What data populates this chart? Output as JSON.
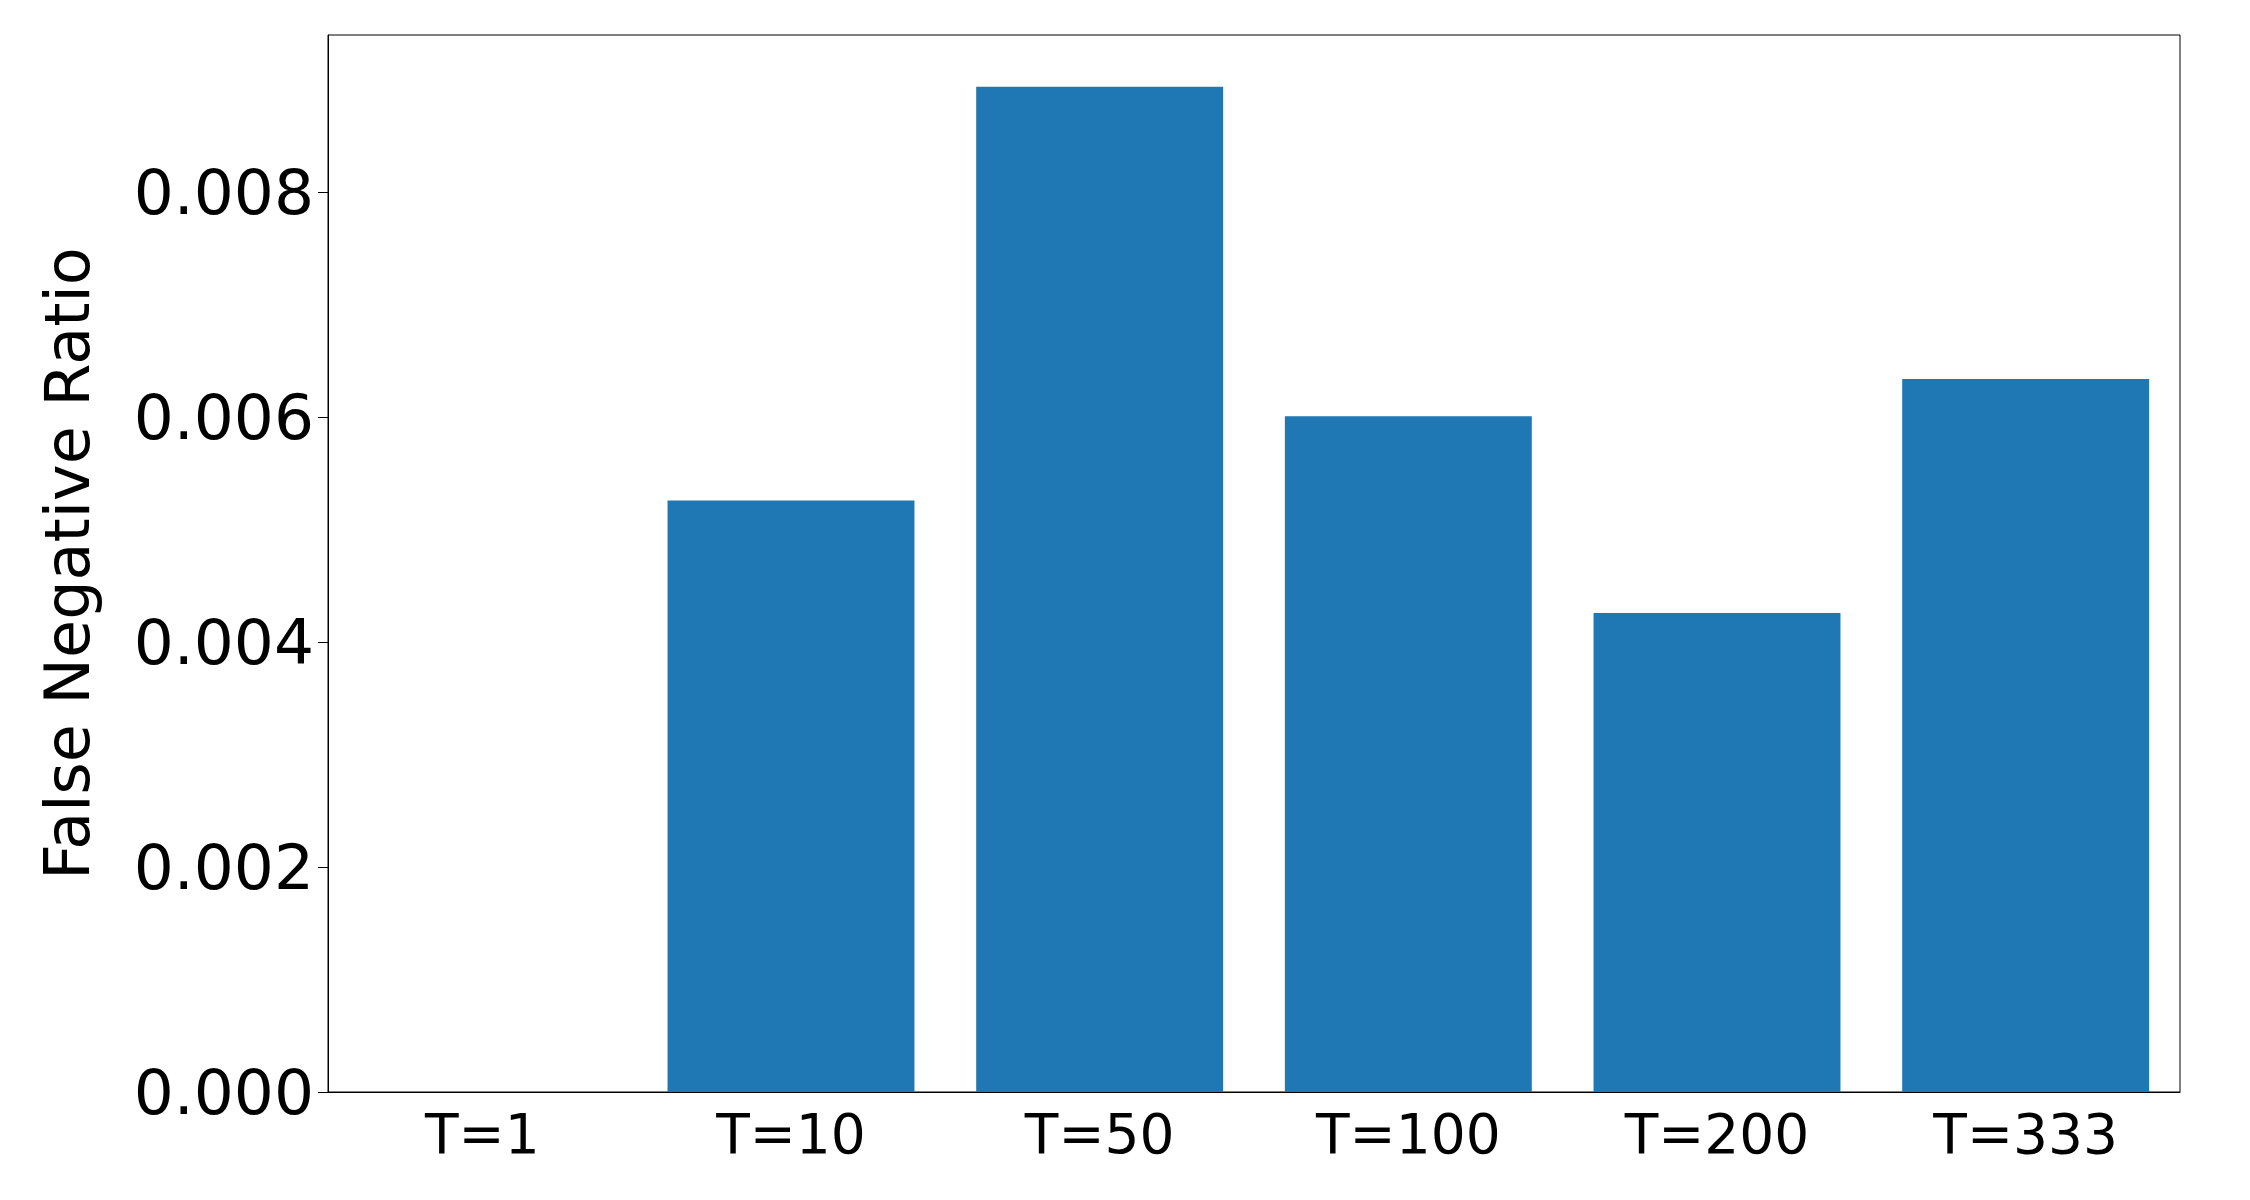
{
  "chart_data": {
    "type": "bar",
    "ylabel": "False Negative Ratio",
    "categories": [
      "T=1",
      "T=10",
      "T=50",
      "T=100",
      "T=200",
      "T=333"
    ],
    "values": [
      0,
      0.00526,
      0.00894,
      0.00601,
      0.00426,
      0.00634
    ],
    "color": "#1f77b4",
    "ylim": [
      0,
      0.0094
    ],
    "yticks": [
      {
        "value": 0,
        "label": "0.000"
      },
      {
        "value": 0.002,
        "label": "0.002"
      },
      {
        "value": 0.004,
        "label": "0.004"
      },
      {
        "value": 0.006,
        "label": "0.006"
      },
      {
        "value": 0.008,
        "label": "0.008"
      }
    ],
    "grid": false
  }
}
